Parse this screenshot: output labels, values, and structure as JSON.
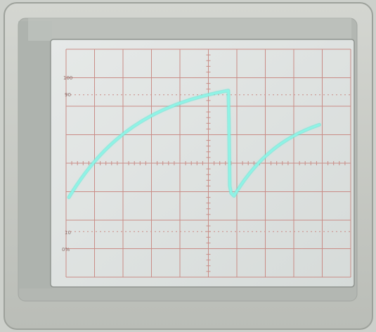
{
  "graticule": {
    "labels": {
      "top": "100",
      "ninety": "90",
      "ten": "10",
      "zero": "0%"
    },
    "major_divisions": {
      "x": 10,
      "y": 8
    },
    "minor_ticks_per_division": 5
  },
  "colors": {
    "bezel_outer": "#c9cbc6",
    "bezel_inner": "#b7bbb6",
    "screen": "#dfe3e2",
    "grid": "#c98c86",
    "trace": "#8ef4e6",
    "trace_glow": "#46d9c9"
  },
  "trace": {
    "waveform": "sawtooth",
    "units": "divisions",
    "start": {
      "x": 0.1,
      "y": -1.2
    },
    "ramp1_end": {
      "x": 5.7,
      "y": 2.55
    },
    "fall_bottom": {
      "x": 5.9,
      "y": -1.15
    },
    "ramp2_end": {
      "x": 8.9,
      "y": 1.35
    }
  }
}
